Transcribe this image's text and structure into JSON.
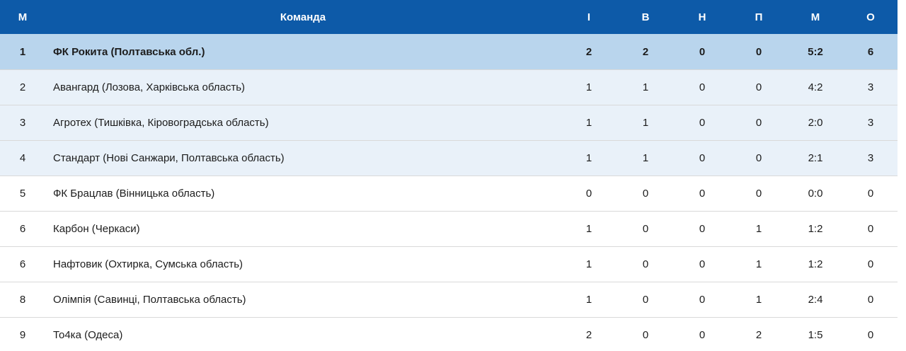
{
  "colors": {
    "header_bg": "#0d5aa8",
    "header_text": "#ffffff",
    "leader_row_bg": "#b9d5ed",
    "zone_row_bg": "#e9f1f9",
    "plain_row_bg": "#ffffff",
    "separator": "#d9d9d9",
    "text": "#1c1c1c"
  },
  "table": {
    "columns": [
      {
        "key": "place",
        "label": "М"
      },
      {
        "key": "team",
        "label": "Команда"
      },
      {
        "key": "played",
        "label": "І"
      },
      {
        "key": "wins",
        "label": "В"
      },
      {
        "key": "draws",
        "label": "Н"
      },
      {
        "key": "losses",
        "label": "П"
      },
      {
        "key": "goals",
        "label": "М"
      },
      {
        "key": "points",
        "label": "О"
      }
    ],
    "rows": [
      {
        "style": "leader",
        "place": "1",
        "team": "ФК Рокита (Полтавська обл.)",
        "played": "2",
        "wins": "2",
        "draws": "0",
        "losses": "0",
        "goals": "5:2",
        "points": "6"
      },
      {
        "style": "zone",
        "place": "2",
        "team": "Авангард (Лозова, Харківська область)",
        "played": "1",
        "wins": "1",
        "draws": "0",
        "losses": "0",
        "goals": "4:2",
        "points": "3"
      },
      {
        "style": "zone",
        "place": "3",
        "team": "Агротех (Тишківка, Кіровоградська область)",
        "played": "1",
        "wins": "1",
        "draws": "0",
        "losses": "0",
        "goals": "2:0",
        "points": "3"
      },
      {
        "style": "zone",
        "place": "4",
        "team": "Стандарт (Нові Санжари, Полтавська область)",
        "played": "1",
        "wins": "1",
        "draws": "0",
        "losses": "0",
        "goals": "2:1",
        "points": "3"
      },
      {
        "style": "plain",
        "place": "5",
        "team": "ФК Брацлав (Вінницька область)",
        "played": "0",
        "wins": "0",
        "draws": "0",
        "losses": "0",
        "goals": "0:0",
        "points": "0"
      },
      {
        "style": "plain",
        "place": "6",
        "team": "Карбон (Черкаси)",
        "played": "1",
        "wins": "0",
        "draws": "0",
        "losses": "1",
        "goals": "1:2",
        "points": "0"
      },
      {
        "style": "plain",
        "place": "6",
        "team": "Нафтовик (Охтирка, Сумська область)",
        "played": "1",
        "wins": "0",
        "draws": "0",
        "losses": "1",
        "goals": "1:2",
        "points": "0"
      },
      {
        "style": "plain",
        "place": "8",
        "team": "Олімпія (Савинці, Полтавська область)",
        "played": "1",
        "wins": "0",
        "draws": "0",
        "losses": "1",
        "goals": "2:4",
        "points": "0"
      },
      {
        "style": "plain",
        "place": "9",
        "team": "То4ка (Одеса)",
        "played": "2",
        "wins": "0",
        "draws": "0",
        "losses": "2",
        "goals": "1:5",
        "points": "0"
      }
    ]
  }
}
